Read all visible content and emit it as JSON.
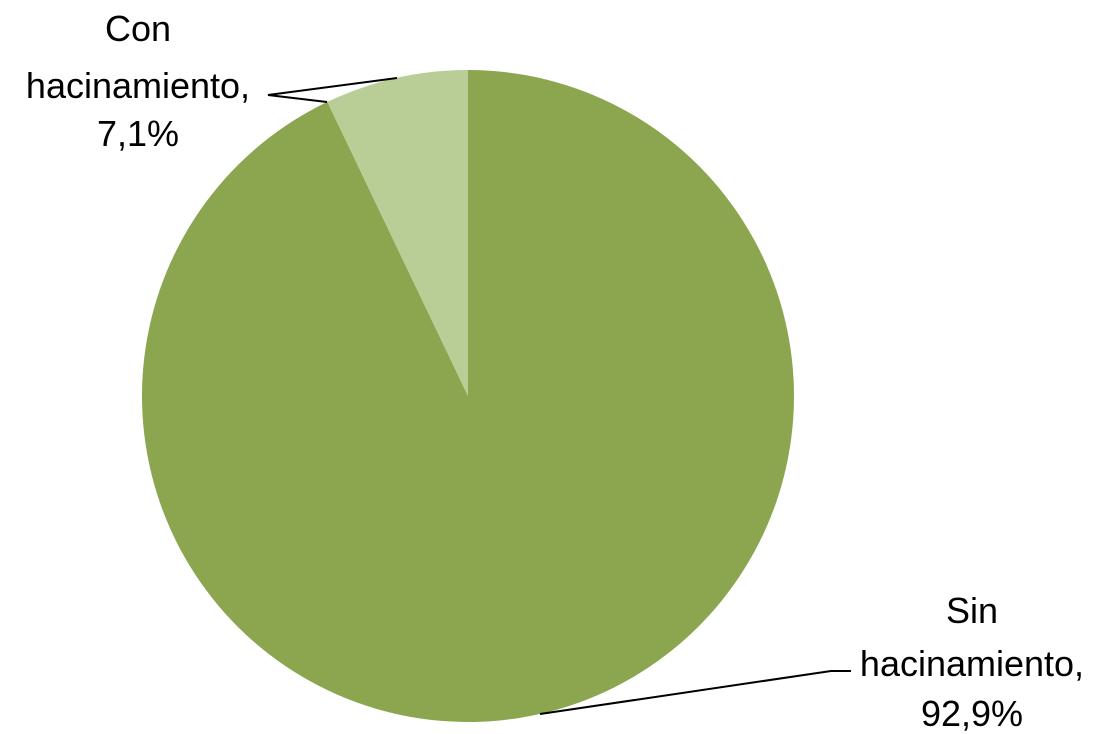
{
  "chart_data": {
    "type": "pie",
    "title": "",
    "start_angle_deg": 0,
    "direction": "clockwise",
    "slices": [
      {
        "key": "sin",
        "label": "Sin hacinamiento",
        "value": 92.9,
        "display_lines": [
          "Sin",
          "hacinamiento,",
          "92,9%"
        ],
        "color": "#8BA64F"
      },
      {
        "key": "con",
        "label": "Con hacinamiento",
        "value": 7.1,
        "display_lines": [
          "Con",
          "hacinamiento,",
          "7,1%"
        ],
        "color": "#B8CE96"
      }
    ],
    "legend": "none"
  }
}
